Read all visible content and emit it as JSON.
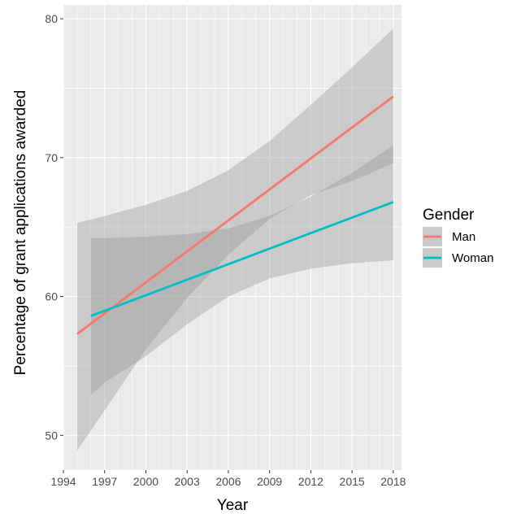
{
  "chart_data": {
    "type": "line",
    "xlabel": "Year",
    "ylabel": "Percentage of grant applications awarded",
    "xlim": [
      1994,
      2018.6
    ],
    "ylim": [
      47.5,
      81.0
    ],
    "x_ticks": [
      "1994",
      "1997",
      "2000",
      "2003",
      "2006",
      "2009",
      "2012",
      "2015",
      "2018"
    ],
    "y_ticks": [
      "50",
      "60",
      "70",
      "80"
    ],
    "legend": {
      "title": "Gender",
      "position": "right"
    },
    "grid": true,
    "background": "#ebebeb",
    "series": [
      {
        "name": "Man",
        "color": "#f8766d",
        "x": [
          1995,
          2018
        ],
        "y": [
          57.3,
          74.4
        ],
        "ci_x": [
          1995,
          1997,
          2000,
          2003,
          2006,
          2009,
          2012,
          2015,
          2018
        ],
        "ci_upper": [
          65.3,
          65.8,
          66.6,
          67.6,
          69.1,
          71.2,
          73.8,
          76.5,
          79.3
        ],
        "ci_lower": [
          48.9,
          51.8,
          56.2,
          59.9,
          63.0,
          65.6,
          67.3,
          68.3,
          69.6
        ]
      },
      {
        "name": "Woman",
        "color": "#00bfc4",
        "x": [
          1996,
          2018
        ],
        "y": [
          58.6,
          66.8
        ],
        "ci_x": [
          1996,
          1997,
          2000,
          2003,
          2006,
          2009,
          2012,
          2015,
          2018
        ],
        "ci_upper": [
          64.2,
          64.2,
          64.3,
          64.5,
          64.9,
          65.8,
          67.2,
          68.9,
          70.9
        ],
        "ci_lower": [
          52.9,
          53.8,
          55.7,
          58.0,
          60.0,
          61.3,
          62.0,
          62.4,
          62.6
        ]
      }
    ]
  }
}
